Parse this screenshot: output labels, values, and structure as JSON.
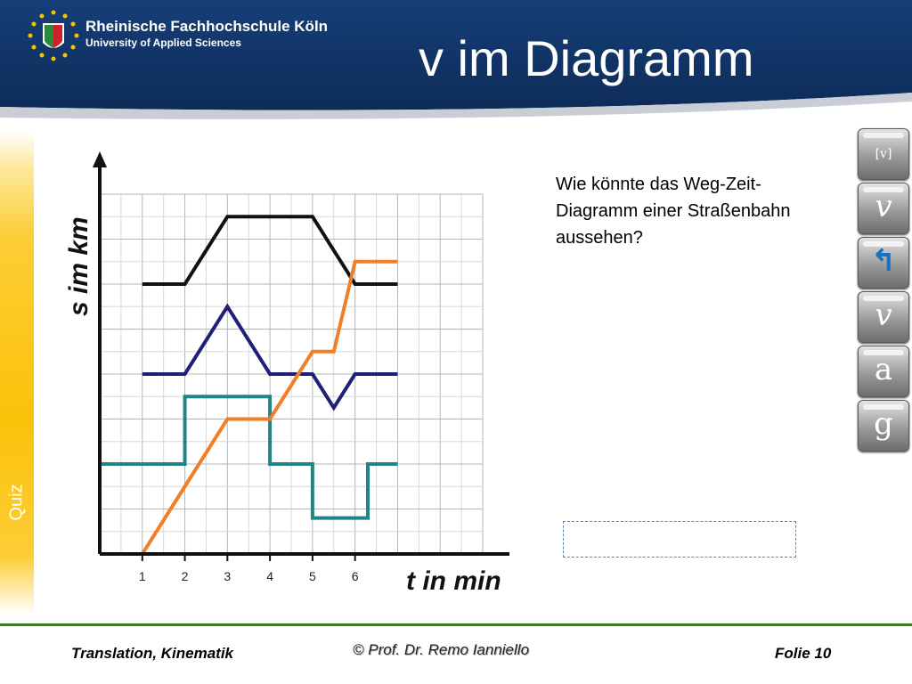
{
  "header": {
    "institution": "Rheinische Fachhochschule Köln",
    "institution_sub": "University of Applied Sciences",
    "title": "v im Diagramm",
    "bg_color": "#0f3061"
  },
  "sidebar": {
    "label": "Quiz",
    "color": "#fbc20a"
  },
  "chart_data": {
    "type": "line",
    "xlabel": "t in min",
    "ylabel": "s im km",
    "x_ticks": [
      "1",
      "2",
      "3",
      "4",
      "5",
      "6"
    ],
    "xlim": [
      -1,
      8
    ],
    "ylim": [
      0,
      8
    ],
    "grid": true,
    "series": [
      {
        "color": "#111111",
        "x": [
          0,
          1,
          2,
          4,
          5,
          6
        ],
        "y": [
          6,
          6,
          7.5,
          7.5,
          6,
          6
        ]
      },
      {
        "color": "#1f1f75",
        "x": [
          0,
          1,
          2,
          3,
          4,
          4.5,
          5,
          6
        ],
        "y": [
          4,
          4,
          5.5,
          4,
          4,
          3.25,
          4,
          4
        ]
      },
      {
        "color": "#1f8585",
        "x": [
          -1,
          1,
          1,
          3,
          3,
          4,
          4,
          5.3,
          5.3,
          6
        ],
        "y": [
          2,
          2,
          3.5,
          3.5,
          2,
          2,
          0.8,
          0.8,
          2,
          2
        ]
      },
      {
        "color": "#f07f27",
        "x": [
          -1,
          0,
          1,
          2,
          3,
          4,
          4.5,
          5,
          6
        ],
        "y": [
          0,
          0,
          1.5,
          3,
          3,
          4.5,
          4.5,
          6.5,
          6.5
        ]
      }
    ]
  },
  "question": "Wie könnte das Weg-Zeit-Diagramm einer Straßenbahn aussehen?",
  "nav_buttons": [
    {
      "label": "[v]",
      "icon": "v-bracket-icon"
    },
    {
      "label": "𝑣",
      "icon": "v-italic-icon"
    },
    {
      "label": "↰",
      "icon": "return-arrow-icon"
    },
    {
      "label": "𝑣",
      "icon": "v-italic-icon"
    },
    {
      "label": "a",
      "icon": "a-letter-icon"
    },
    {
      "label": "g",
      "icon": "g-letter-icon"
    }
  ],
  "footer": {
    "left": "Translation, Kinematik",
    "center": "© Prof. Dr. Remo Ianniello",
    "right": "Folie 10",
    "line_color": "#3e7a28"
  }
}
